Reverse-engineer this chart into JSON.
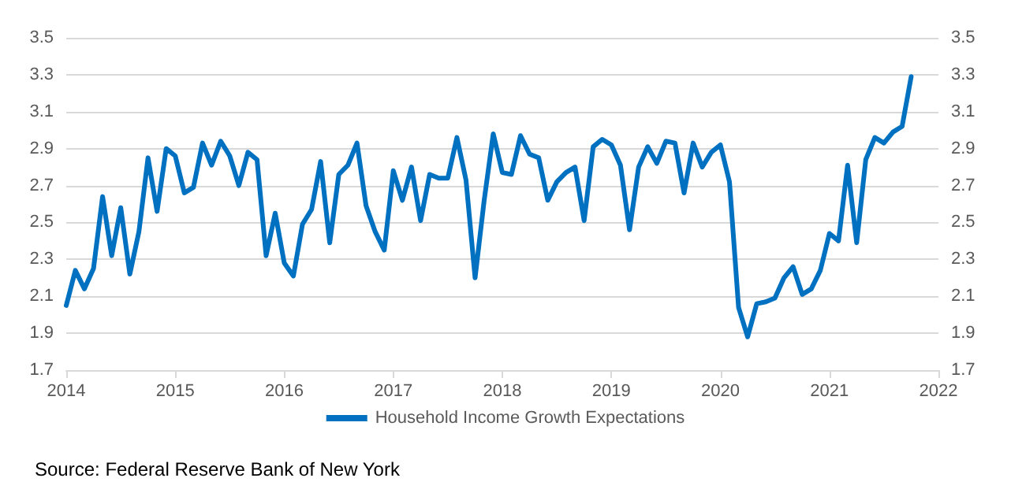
{
  "chart_data": {
    "type": "line",
    "x": [
      "2014-01",
      "2014-02",
      "2014-03",
      "2014-04",
      "2014-05",
      "2014-06",
      "2014-07",
      "2014-08",
      "2014-09",
      "2014-10",
      "2014-11",
      "2014-12",
      "2015-01",
      "2015-02",
      "2015-03",
      "2015-04",
      "2015-05",
      "2015-06",
      "2015-07",
      "2015-08",
      "2015-09",
      "2015-10",
      "2015-11",
      "2015-12",
      "2016-01",
      "2016-02",
      "2016-03",
      "2016-04",
      "2016-05",
      "2016-06",
      "2016-07",
      "2016-08",
      "2016-09",
      "2016-10",
      "2016-11",
      "2016-12",
      "2017-01",
      "2017-02",
      "2017-03",
      "2017-04",
      "2017-05",
      "2017-06",
      "2017-07",
      "2017-08",
      "2017-09",
      "2017-10",
      "2017-11",
      "2017-12",
      "2018-01",
      "2018-02",
      "2018-03",
      "2018-04",
      "2018-05",
      "2018-06",
      "2018-07",
      "2018-08",
      "2018-09",
      "2018-10",
      "2018-11",
      "2018-12",
      "2019-01",
      "2019-02",
      "2019-03",
      "2019-04",
      "2019-05",
      "2019-06",
      "2019-07",
      "2019-08",
      "2019-09",
      "2019-10",
      "2019-11",
      "2019-12",
      "2020-01",
      "2020-02",
      "2020-03",
      "2020-04",
      "2020-05",
      "2020-06",
      "2020-07",
      "2020-08",
      "2020-09",
      "2020-10",
      "2020-11",
      "2020-12",
      "2021-01",
      "2021-02",
      "2021-03",
      "2021-04",
      "2021-05",
      "2021-06",
      "2021-07",
      "2021-08",
      "2021-09",
      "2021-10"
    ],
    "series": [
      {
        "name": "Household Income Growth Expectations",
        "color": "#0070c0",
        "values": [
          2.05,
          2.24,
          2.14,
          2.25,
          2.64,
          2.32,
          2.58,
          2.22,
          2.45,
          2.85,
          2.56,
          2.9,
          2.86,
          2.66,
          2.69,
          2.93,
          2.81,
          2.94,
          2.86,
          2.7,
          2.88,
          2.84,
          2.32,
          2.55,
          2.28,
          2.21,
          2.49,
          2.57,
          2.83,
          2.39,
          2.76,
          2.81,
          2.93,
          2.59,
          2.45,
          2.35,
          2.78,
          2.62,
          2.8,
          2.51,
          2.76,
          2.74,
          2.74,
          2.96,
          2.73,
          2.2,
          2.62,
          2.98,
          2.77,
          2.76,
          2.97,
          2.87,
          2.85,
          2.62,
          2.72,
          2.77,
          2.8,
          2.51,
          2.91,
          2.95,
          2.92,
          2.81,
          2.46,
          2.8,
          2.91,
          2.82,
          2.94,
          2.93,
          2.66,
          2.93,
          2.8,
          2.88,
          2.92,
          2.72,
          2.04,
          1.88,
          2.06,
          2.07,
          2.09,
          2.2,
          2.26,
          2.11,
          2.14,
          2.24,
          2.44,
          2.4,
          2.81,
          2.39,
          2.84,
          2.96,
          2.93,
          2.99,
          3.02,
          3.29
        ]
      }
    ],
    "xlim": [
      "2014",
      "2022"
    ],
    "xticks": [
      "2014",
      "2015",
      "2016",
      "2017",
      "2018",
      "2019",
      "2020",
      "2021",
      "2022"
    ],
    "ylim": [
      1.7,
      3.5
    ],
    "yticks": [
      1.7,
      1.9,
      2.1,
      2.3,
      2.5,
      2.7,
      2.9,
      3.1,
      3.3,
      3.5
    ],
    "y2lim": [
      1.7,
      3.5
    ],
    "y2ticks": [
      1.7,
      1.9,
      2.1,
      2.3,
      2.5,
      2.7,
      2.9,
      3.1,
      3.3,
      3.5
    ],
    "grid": "y",
    "legend": "bottom",
    "marker": "none",
    "line_style": "solid",
    "annotations": [
      "Source: Federal Reserve Bank of New York"
    ]
  }
}
